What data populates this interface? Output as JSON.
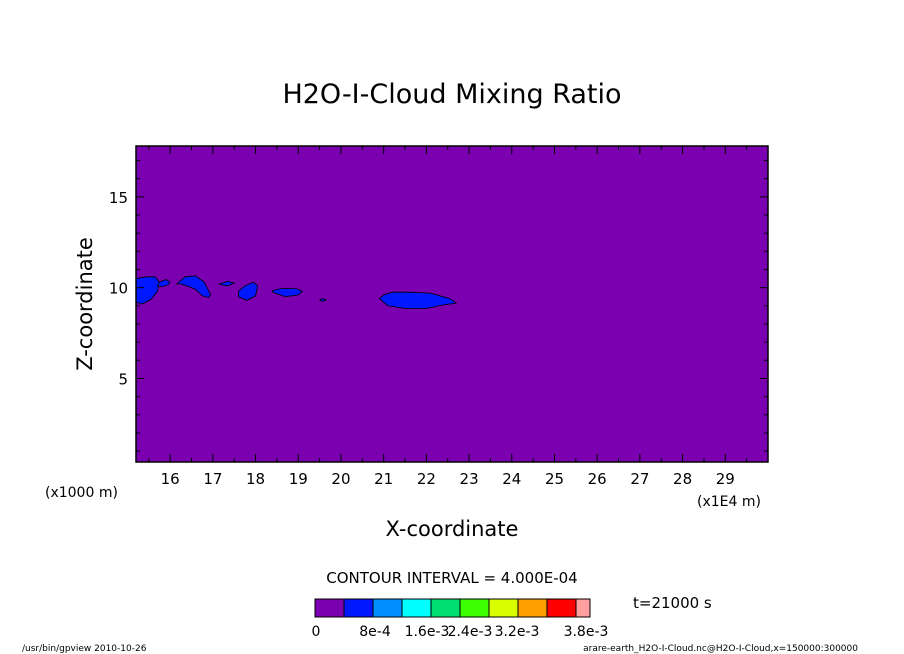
{
  "chart_data": {
    "type": "heatmap",
    "title": "H2O-I-Cloud Mixing Ratio",
    "xlabel": "X-coordinate",
    "ylabel": "Z-coordinate",
    "x_unit": "(x1E4 m)",
    "y_unit": "(x1000 m)",
    "xlim": [
      15.2,
      30.0
    ],
    "ylim": [
      0.4,
      17.8
    ],
    "x_ticks": [
      16,
      17,
      18,
      19,
      20,
      21,
      22,
      23,
      24,
      25,
      26,
      27,
      28,
      29
    ],
    "y_ticks": [
      5,
      10,
      15
    ],
    "x_tick_labels": [
      "16",
      "17",
      "18",
      "19",
      "20",
      "21",
      "22",
      "23",
      "24",
      "25",
      "26",
      "27",
      "28",
      "29"
    ],
    "y_tick_labels": [
      "5",
      "10",
      "15"
    ],
    "contour_interval_text": "CONTOUR INTERVAL = 4.000E-04",
    "time_text": "t=21000 s",
    "background_level_color": "#7b00b0",
    "cloud_level_color": "#0018ff",
    "cloud_regions": [
      {
        "x": [
          15.2,
          15.35,
          15.55,
          15.7,
          15.75,
          15.65,
          15.45,
          15.2
        ],
        "z": [
          9.2,
          9.1,
          9.35,
          9.8,
          10.3,
          10.6,
          10.6,
          10.5
        ]
      },
      {
        "x": [
          15.7,
          15.8,
          15.95,
          16.0,
          15.9,
          15.75
        ],
        "z": [
          10.1,
          10.05,
          10.15,
          10.3,
          10.45,
          10.3
        ]
      },
      {
        "x": [
          16.15,
          16.35,
          16.6,
          16.8,
          16.95,
          16.9,
          16.75,
          16.6,
          16.45,
          16.25
        ],
        "z": [
          10.2,
          10.6,
          10.65,
          10.3,
          9.6,
          9.45,
          9.55,
          9.9,
          10.05,
          10.2
        ]
      },
      {
        "x": [
          17.15,
          17.35,
          17.5,
          17.35,
          17.2
        ],
        "z": [
          10.2,
          10.35,
          10.25,
          10.1,
          10.15
        ]
      },
      {
        "x": [
          17.6,
          17.8,
          18.0,
          18.05,
          17.95,
          17.75,
          17.6
        ],
        "z": [
          9.5,
          9.3,
          9.55,
          10.1,
          10.3,
          10.1,
          9.8
        ]
      },
      {
        "x": [
          18.4,
          18.7,
          19.0,
          19.1,
          18.95,
          18.6,
          18.4
        ],
        "z": [
          9.75,
          9.5,
          9.6,
          9.8,
          9.95,
          9.95,
          9.85
        ]
      },
      {
        "x": [
          19.5,
          19.6,
          19.65,
          19.55
        ],
        "z": [
          9.3,
          9.25,
          9.35,
          9.4
        ]
      },
      {
        "x": [
          20.9,
          21.1,
          21.5,
          22.0,
          22.4,
          22.7,
          22.55,
          22.1,
          21.6,
          21.2,
          21.0
        ],
        "z": [
          9.4,
          9.0,
          8.85,
          8.85,
          9.05,
          9.15,
          9.4,
          9.7,
          9.75,
          9.75,
          9.6
        ]
      }
    ],
    "colorbar": {
      "colors": [
        "#7b00b0",
        "#0018ff",
        "#0090ff",
        "#00ffff",
        "#00e070",
        "#3cff00",
        "#d8ff00",
        "#ffa000",
        "#ff0000",
        "#ff9f9f"
      ],
      "labels": [
        "0",
        "8e-4",
        "1.6e-3",
        "2.4e-3",
        "3.2e-3",
        "3.8e-3"
      ]
    }
  },
  "footer": {
    "left": "/usr/bin/gpview  2010-10-26",
    "right": "arare-earth_H2O-I-Cloud.nc@H2O-I-Cloud,x=150000:300000"
  }
}
